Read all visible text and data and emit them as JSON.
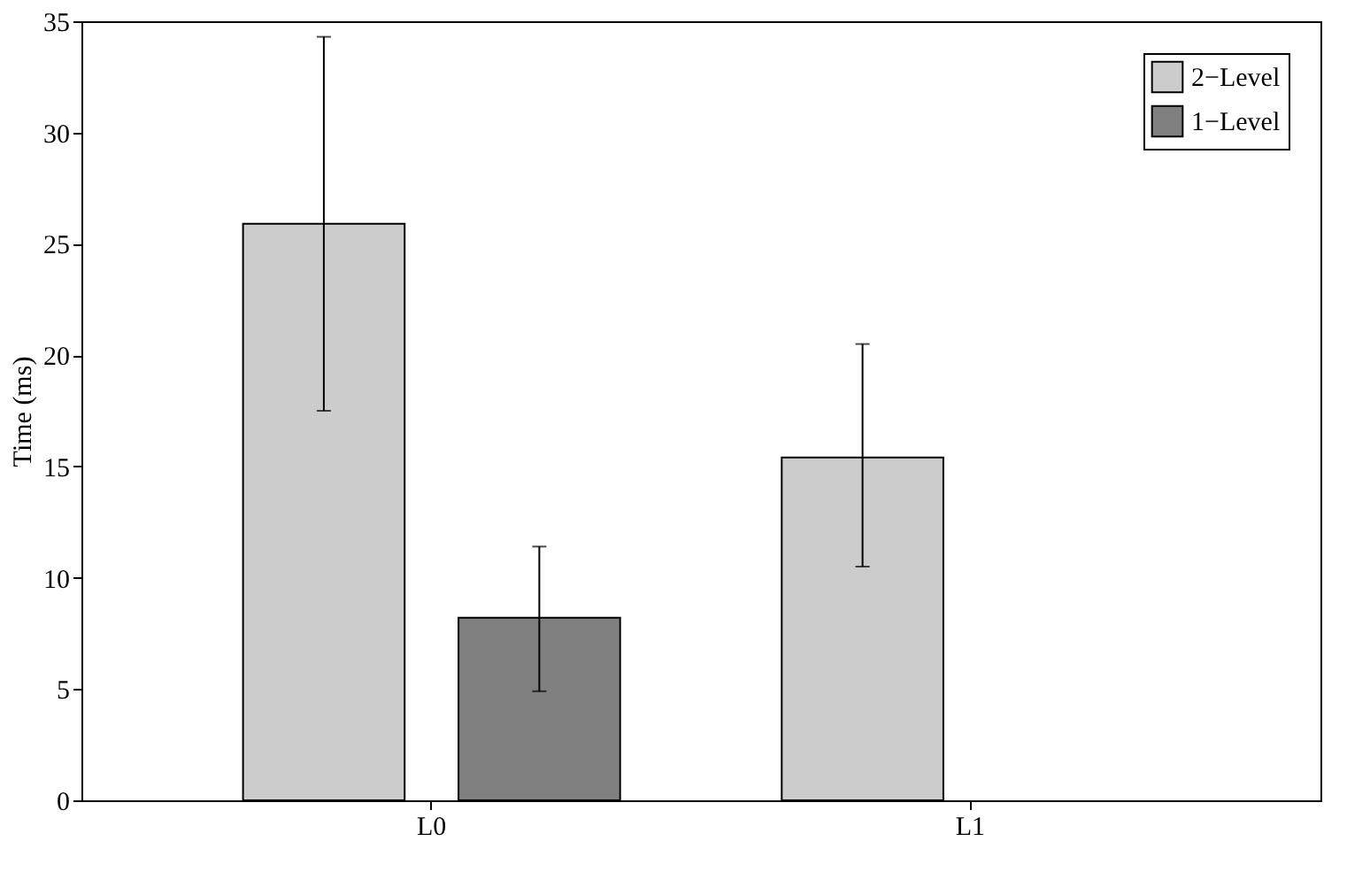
{
  "chart_data": {
    "type": "bar",
    "ylabel": "Time (ms)",
    "categories": [
      "L0",
      "L1"
    ],
    "series": [
      {
        "name": "2−Level",
        "color": "#cccccc",
        "values": [
          25.9,
          15.4
        ],
        "errors": [
          [
            17.5,
            34.3
          ],
          [
            10.5,
            20.5
          ]
        ]
      },
      {
        "name": "1−Level",
        "color": "#808080",
        "values": [
          8.2,
          null
        ],
        "errors": [
          [
            4.9,
            11.4
          ],
          null
        ]
      }
    ],
    "ylim": [
      0,
      35
    ],
    "yticks": [
      0,
      5,
      10,
      15,
      20,
      25,
      30,
      35
    ],
    "grid": false,
    "legend": "top right"
  }
}
